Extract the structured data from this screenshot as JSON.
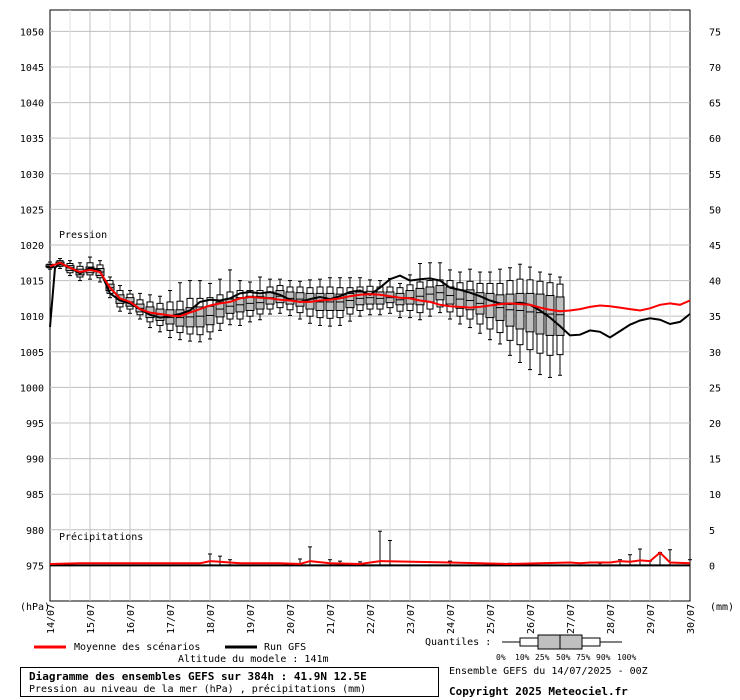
{
  "chart_data": {
    "type": "boxplot",
    "pressure_label": "Pression",
    "precip_label": "Précipitations",
    "left_unit": "(hPa)",
    "right_unit": "(mm)",
    "y_left_ticks": [
      975,
      980,
      985,
      990,
      995,
      1000,
      1005,
      1010,
      1015,
      1020,
      1025,
      1030,
      1035,
      1040,
      1045,
      1050
    ],
    "y_right_ticks": [
      0,
      5,
      10,
      15,
      20,
      25,
      30,
      35,
      40,
      45,
      50,
      55,
      60,
      65,
      70,
      75
    ],
    "ylim": [
      970,
      1053
    ],
    "x_labels": [
      "14/07",
      "15/07",
      "16/07",
      "17/07",
      "18/07",
      "19/07",
      "20/07",
      "21/07",
      "22/07",
      "23/07",
      "24/07",
      "25/07",
      "26/07",
      "27/07",
      "28/07",
      "29/07",
      "30/07"
    ],
    "x_hours": [
      0,
      384
    ],
    "ensemble_mean": [
      [
        0,
        1017
      ],
      [
        6,
        1017.5
      ],
      [
        12,
        1016.8
      ],
      [
        18,
        1016.2
      ],
      [
        24,
        1016.5
      ],
      [
        30,
        1016.2
      ],
      [
        36,
        1014
      ],
      [
        42,
        1012.5
      ],
      [
        48,
        1012
      ],
      [
        54,
        1011
      ],
      [
        60,
        1010.5
      ],
      [
        66,
        1010.3
      ],
      [
        72,
        1010.1
      ],
      [
        78,
        1010
      ],
      [
        84,
        1010.5
      ],
      [
        90,
        1011
      ],
      [
        96,
        1011.5
      ],
      [
        102,
        1011.8
      ],
      [
        108,
        1012
      ],
      [
        114,
        1012.5
      ],
      [
        120,
        1012.7
      ],
      [
        126,
        1012.6
      ],
      [
        132,
        1012.5
      ],
      [
        138,
        1012.3
      ],
      [
        144,
        1012.2
      ],
      [
        150,
        1012
      ],
      [
        156,
        1012
      ],
      [
        162,
        1012.2
      ],
      [
        168,
        1012.3
      ],
      [
        174,
        1012.5
      ],
      [
        180,
        1012.8
      ],
      [
        186,
        1013
      ],
      [
        192,
        1013.1
      ],
      [
        198,
        1013
      ],
      [
        204,
        1012.8
      ],
      [
        210,
        1012.6
      ],
      [
        216,
        1012.5
      ],
      [
        222,
        1012.2
      ],
      [
        228,
        1012
      ],
      [
        234,
        1011.6
      ],
      [
        240,
        1011.4
      ],
      [
        246,
        1011.3
      ],
      [
        252,
        1011.2
      ],
      [
        258,
        1011.3
      ],
      [
        264,
        1011.5
      ],
      [
        270,
        1011.7
      ],
      [
        276,
        1011.8
      ],
      [
        282,
        1011.7
      ],
      [
        288,
        1011.6
      ],
      [
        294,
        1011.2
      ],
      [
        300,
        1010.9
      ],
      [
        306,
        1010.7
      ],
      [
        312,
        1010.8
      ],
      [
        318,
        1011
      ],
      [
        324,
        1011.3
      ],
      [
        330,
        1011.5
      ],
      [
        336,
        1011.4
      ],
      [
        342,
        1011.2
      ],
      [
        348,
        1011
      ],
      [
        354,
        1010.8
      ],
      [
        360,
        1011.1
      ],
      [
        366,
        1011.6
      ],
      [
        372,
        1011.8
      ],
      [
        378,
        1011.6
      ],
      [
        384,
        1012.2
      ]
    ],
    "run_gfs": [
      [
        0,
        1008.5
      ],
      [
        3,
        1016.8
      ],
      [
        6,
        1017.4
      ],
      [
        12,
        1016.8
      ],
      [
        18,
        1016
      ],
      [
        24,
        1016.8
      ],
      [
        30,
        1016.4
      ],
      [
        36,
        1013.2
      ],
      [
        42,
        1012.2
      ],
      [
        48,
        1011.8
      ],
      [
        54,
        1011
      ],
      [
        60,
        1010.2
      ],
      [
        66,
        1009.8
      ],
      [
        72,
        1010
      ],
      [
        78,
        1010.3
      ],
      [
        84,
        1010.8
      ],
      [
        90,
        1012
      ],
      [
        96,
        1012.3
      ],
      [
        102,
        1012.2
      ],
      [
        108,
        1012.5
      ],
      [
        114,
        1013.2
      ],
      [
        120,
        1013.4
      ],
      [
        126,
        1013.2
      ],
      [
        132,
        1013.4
      ],
      [
        138,
        1013
      ],
      [
        144,
        1012.3
      ],
      [
        150,
        1012
      ],
      [
        156,
        1012.4
      ],
      [
        162,
        1012.7
      ],
      [
        168,
        1012.4
      ],
      [
        174,
        1012.8
      ],
      [
        180,
        1013.4
      ],
      [
        186,
        1013.6
      ],
      [
        192,
        1013
      ],
      [
        198,
        1014
      ],
      [
        204,
        1015.2
      ],
      [
        210,
        1015.7
      ],
      [
        216,
        1015
      ],
      [
        222,
        1015.2
      ],
      [
        228,
        1015.3
      ],
      [
        234,
        1015
      ],
      [
        240,
        1014
      ],
      [
        246,
        1013.7
      ],
      [
        252,
        1013.3
      ],
      [
        258,
        1012.8
      ],
      [
        264,
        1012.2
      ],
      [
        270,
        1011.8
      ],
      [
        276,
        1011.7
      ],
      [
        282,
        1011.9
      ],
      [
        288,
        1011.6
      ],
      [
        294,
        1010.8
      ],
      [
        300,
        1009.8
      ],
      [
        306,
        1008.6
      ],
      [
        312,
        1007.3
      ],
      [
        318,
        1007.4
      ],
      [
        324,
        1008
      ],
      [
        330,
        1007.8
      ],
      [
        336,
        1007
      ],
      [
        342,
        1007.9
      ],
      [
        348,
        1008.8
      ],
      [
        354,
        1009.4
      ],
      [
        360,
        1009.7
      ],
      [
        366,
        1009.5
      ],
      [
        372,
        1008.9
      ],
      [
        378,
        1009.2
      ],
      [
        384,
        1010.3
      ]
    ],
    "boxes": [
      {
        "h": 0,
        "min": 1016.6,
        "q10": 1016.8,
        "q25": 1016.9,
        "med": 1017,
        "q75": 1017.2,
        "q90": 1017.3,
        "max": 1017.6
      },
      {
        "h": 6,
        "min": 1016.7,
        "q10": 1017,
        "q25": 1017.2,
        "med": 1017.4,
        "q75": 1017.6,
        "q90": 1017.8,
        "max": 1018.1
      },
      {
        "h": 12,
        "min": 1015.7,
        "q10": 1016.1,
        "q25": 1016.4,
        "med": 1016.8,
        "q75": 1017.1,
        "q90": 1017.4,
        "max": 1017.8
      },
      {
        "h": 18,
        "min": 1015,
        "q10": 1015.5,
        "q25": 1015.8,
        "med": 1016.2,
        "q75": 1016.6,
        "q90": 1017,
        "max": 1017.5
      },
      {
        "h": 24,
        "min": 1015.2,
        "q10": 1015.8,
        "q25": 1016.1,
        "med": 1016.5,
        "q75": 1016.9,
        "q90": 1017.5,
        "max": 1018.3
      },
      {
        "h": 30,
        "min": 1014.8,
        "q10": 1015.4,
        "q25": 1015.7,
        "med": 1016.2,
        "q75": 1016.7,
        "q90": 1017.2,
        "max": 1017.8
      },
      {
        "h": 36,
        "min": 1012.6,
        "q10": 1013.2,
        "q25": 1013.6,
        "med": 1014,
        "q75": 1014.5,
        "q90": 1015,
        "max": 1015.5
      },
      {
        "h": 42,
        "min": 1010.7,
        "q10": 1011.3,
        "q25": 1011.8,
        "med": 1012.4,
        "q75": 1013,
        "q90": 1013.6,
        "max": 1014.3
      },
      {
        "h": 48,
        "min": 1010.4,
        "q10": 1011,
        "q25": 1011.4,
        "med": 1012,
        "q75": 1012.6,
        "q90": 1013.1,
        "max": 1013.6
      },
      {
        "h": 54,
        "min": 1009.6,
        "q10": 1010.2,
        "q25": 1010.6,
        "med": 1011.1,
        "q75": 1011.7,
        "q90": 1012.3,
        "max": 1013.2
      },
      {
        "h": 60,
        "min": 1008.4,
        "q10": 1009.2,
        "q25": 1009.8,
        "med": 1010.5,
        "q75": 1011.3,
        "q90": 1012,
        "max": 1013
      },
      {
        "h": 66,
        "min": 1007.8,
        "q10": 1008.7,
        "q25": 1009.4,
        "med": 1010.2,
        "q75": 1011,
        "q90": 1011.8,
        "max": 1012.8
      },
      {
        "h": 72,
        "min": 1007,
        "q10": 1008,
        "q25": 1008.9,
        "med": 1009.8,
        "q75": 1010.9,
        "q90": 1012,
        "max": 1013.6
      },
      {
        "h": 78,
        "min": 1006.7,
        "q10": 1007.7,
        "q25": 1008.6,
        "med": 1009.8,
        "q75": 1010.9,
        "q90": 1012.1,
        "max": 1014.7
      },
      {
        "h": 84,
        "min": 1006.5,
        "q10": 1007.5,
        "q25": 1008.5,
        "med": 1009.9,
        "q75": 1011.2,
        "q90": 1012.5,
        "max": 1015
      },
      {
        "h": 90,
        "min": 1006.4,
        "q10": 1007.4,
        "q25": 1008.5,
        "med": 1010,
        "q75": 1011.3,
        "q90": 1012.5,
        "max": 1015
      },
      {
        "h": 96,
        "min": 1006.8,
        "q10": 1007.8,
        "q25": 1008.8,
        "med": 1010.1,
        "q75": 1011.4,
        "q90": 1012.6,
        "max": 1014.6
      },
      {
        "h": 102,
        "min": 1008,
        "q10": 1009,
        "q25": 1009.9,
        "med": 1011,
        "q75": 1012,
        "q90": 1013,
        "max": 1015.2
      },
      {
        "h": 108,
        "min": 1008.8,
        "q10": 1009.6,
        "q25": 1010.4,
        "med": 1011.4,
        "q75": 1012.4,
        "q90": 1013.4,
        "max": 1016.5
      },
      {
        "h": 114,
        "min": 1008.7,
        "q10": 1009.6,
        "q25": 1010.6,
        "med": 1011.6,
        "q75": 1012.6,
        "q90": 1013.6,
        "max": 1015
      },
      {
        "h": 120,
        "min": 1009.2,
        "q10": 1010,
        "q25": 1010.8,
        "med": 1011.8,
        "q75": 1012.8,
        "q90": 1013.6,
        "max": 1014.8
      },
      {
        "h": 126,
        "min": 1009.5,
        "q10": 1010.3,
        "q25": 1011,
        "med": 1011.9,
        "q75": 1012.8,
        "q90": 1013.6,
        "max": 1015.5
      },
      {
        "h": 132,
        "min": 1010.3,
        "q10": 1011,
        "q25": 1011.7,
        "med": 1012.6,
        "q75": 1013.4,
        "q90": 1014.1,
        "max": 1015.2
      },
      {
        "h": 138,
        "min": 1010.4,
        "q10": 1011.2,
        "q25": 1011.9,
        "med": 1012.8,
        "q75": 1013.6,
        "q90": 1014.3,
        "max": 1015.2
      },
      {
        "h": 144,
        "min": 1010.1,
        "q10": 1010.9,
        "q25": 1011.7,
        "med": 1012.5,
        "q75": 1013.4,
        "q90": 1014.1,
        "max": 1015
      },
      {
        "h": 150,
        "min": 1009.6,
        "q10": 1010.5,
        "q25": 1011.4,
        "med": 1012.4,
        "q75": 1013.3,
        "q90": 1014.1,
        "max": 1014.9
      },
      {
        "h": 156,
        "min": 1009,
        "q10": 1010,
        "q25": 1011,
        "med": 1012.1,
        "q75": 1013.2,
        "q90": 1014,
        "max": 1015.1
      },
      {
        "h": 162,
        "min": 1008.7,
        "q10": 1009.8,
        "q25": 1010.8,
        "med": 1012,
        "q75": 1013.2,
        "q90": 1014.1,
        "max": 1015.2
      },
      {
        "h": 168,
        "min": 1008.6,
        "q10": 1009.7,
        "q25": 1010.8,
        "med": 1012,
        "q75": 1013.2,
        "q90": 1014.1,
        "max": 1015.4
      },
      {
        "h": 174,
        "min": 1008.7,
        "q10": 1009.8,
        "q25": 1010.8,
        "med": 1012,
        "q75": 1013.1,
        "q90": 1014,
        "max": 1015.4
      },
      {
        "h": 180,
        "min": 1009.3,
        "q10": 1010.3,
        "q25": 1011.2,
        "med": 1012.2,
        "q75": 1013.2,
        "q90": 1014,
        "max": 1015.4
      },
      {
        "h": 186,
        "min": 1010,
        "q10": 1010.8,
        "q25": 1011.6,
        "med": 1012.5,
        "q75": 1013.4,
        "q90": 1014.1,
        "max": 1015.4
      },
      {
        "h": 192,
        "min": 1010.2,
        "q10": 1011,
        "q25": 1011.7,
        "med": 1012.6,
        "q75": 1013.5,
        "q90": 1014.2,
        "max": 1015.1
      },
      {
        "h": 198,
        "min": 1010.2,
        "q10": 1011,
        "q25": 1011.7,
        "med": 1012.5,
        "q75": 1013.4,
        "q90": 1014.1,
        "max": 1015
      },
      {
        "h": 204,
        "min": 1010.4,
        "q10": 1011.2,
        "q25": 1011.9,
        "med": 1012.6,
        "q75": 1013.4,
        "q90": 1014.1,
        "max": 1015.3
      },
      {
        "h": 210,
        "min": 1009.8,
        "q10": 1010.7,
        "q25": 1011.6,
        "med": 1012.3,
        "q75": 1013.2,
        "q90": 1014,
        "max": 1014.6
      },
      {
        "h": 216,
        "min": 1009.8,
        "q10": 1010.8,
        "q25": 1011.7,
        "med": 1012.6,
        "q75": 1013.6,
        "q90": 1014.4,
        "max": 1015.8
      },
      {
        "h": 222,
        "min": 1009.5,
        "q10": 1010.5,
        "q25": 1011.6,
        "med": 1012.8,
        "q75": 1013.9,
        "q90": 1014.8,
        "max": 1017.4
      },
      {
        "h": 228,
        "min": 1010,
        "q10": 1011,
        "q25": 1012,
        "med": 1013.1,
        "q75": 1014.1,
        "q90": 1015,
        "max": 1017.5
      },
      {
        "h": 234,
        "min": 1010.5,
        "q10": 1011.3,
        "q25": 1012.3,
        "med": 1013.3,
        "q75": 1014.3,
        "q90": 1015.1,
        "max": 1017.5
      },
      {
        "h": 240,
        "min": 1009.6,
        "q10": 1010.6,
        "q25": 1011.7,
        "med": 1012.9,
        "q75": 1014.1,
        "q90": 1015,
        "max": 1016.5
      },
      {
        "h": 246,
        "min": 1008.9,
        "q10": 1010,
        "q25": 1011.1,
        "med": 1012.4,
        "q75": 1013.7,
        "q90": 1014.7,
        "max": 1016.2
      },
      {
        "h": 252,
        "min": 1008.4,
        "q10": 1009.6,
        "q25": 1010.9,
        "med": 1012.2,
        "q75": 1013.7,
        "q90": 1014.9,
        "max": 1016.6
      },
      {
        "h": 258,
        "min": 1007.6,
        "q10": 1008.9,
        "q25": 1010.3,
        "med": 1011.8,
        "q75": 1013.3,
        "q90": 1014.6,
        "max": 1016.2
      },
      {
        "h": 264,
        "min": 1006.7,
        "q10": 1008.2,
        "q25": 1009.8,
        "med": 1011.5,
        "q75": 1013.2,
        "q90": 1014.6,
        "max": 1016.2
      },
      {
        "h": 270,
        "min": 1006.1,
        "q10": 1007.7,
        "q25": 1009.4,
        "med": 1011.2,
        "q75": 1013,
        "q90": 1014.6,
        "max": 1016.6
      },
      {
        "h": 276,
        "min": 1004.5,
        "q10": 1006.6,
        "q25": 1008.6,
        "med": 1010.9,
        "q75": 1013.1,
        "q90": 1015,
        "max": 1016.8
      },
      {
        "h": 282,
        "min": 1003.5,
        "q10": 1006,
        "q25": 1008.2,
        "med": 1010.8,
        "q75": 1013.2,
        "q90": 1015.2,
        "max": 1017.3
      },
      {
        "h": 288,
        "min": 1002.5,
        "q10": 1005.3,
        "q25": 1007.8,
        "med": 1010.6,
        "q75": 1013.2,
        "q90": 1015.1,
        "max": 1016.9
      },
      {
        "h": 294,
        "min": 1001.8,
        "q10": 1004.8,
        "q25": 1007.5,
        "med": 1010.5,
        "q75": 1013.1,
        "q90": 1014.9,
        "max": 1016.2
      },
      {
        "h": 300,
        "min": 1001.4,
        "q10": 1004.5,
        "q25": 1007.3,
        "med": 1010.3,
        "q75": 1012.9,
        "q90": 1014.7,
        "max": 1015.9
      },
      {
        "h": 306,
        "min": 1001.7,
        "q10": 1004.6,
        "q25": 1007.3,
        "med": 1010.2,
        "q75": 1012.7,
        "q90": 1014.5,
        "max": 1015.5
      }
    ],
    "precip_label_0": "0",
    "precip_series": [
      [
        0,
        0.2
      ],
      [
        18,
        0.3
      ],
      [
        90,
        0.3
      ],
      [
        96,
        0.6
      ],
      [
        102,
        0.5
      ],
      [
        108,
        0.4
      ],
      [
        114,
        0.3
      ],
      [
        138,
        0.3
      ],
      [
        150,
        0.2
      ],
      [
        156,
        0.6
      ],
      [
        168,
        0.3
      ],
      [
        186,
        0.2
      ],
      [
        198,
        0.6
      ],
      [
        240,
        0.4
      ],
      [
        258,
        0.3
      ],
      [
        276,
        0.2
      ],
      [
        312,
        0.4
      ],
      [
        318,
        0.3
      ],
      [
        324,
        0.4
      ],
      [
        336,
        0.4
      ],
      [
        342,
        0.6
      ],
      [
        348,
        0.5
      ],
      [
        354,
        0.7
      ],
      [
        360,
        0.6
      ],
      [
        366,
        1.8
      ],
      [
        372,
        0.4
      ],
      [
        384,
        0.3
      ]
    ],
    "precip_spikes": [
      [
        96,
        1.6
      ],
      [
        102,
        1.3
      ],
      [
        108,
        0.8
      ],
      [
        150,
        0.9
      ],
      [
        156,
        2.6
      ],
      [
        168,
        0.8
      ],
      [
        174,
        0.6
      ],
      [
        186,
        0.5
      ],
      [
        198,
        4.8
      ],
      [
        204,
        3.5
      ],
      [
        240,
        0.6
      ],
      [
        276,
        0.3
      ],
      [
        330,
        0.3
      ],
      [
        342,
        0.8
      ],
      [
        348,
        1.5
      ],
      [
        354,
        2.3
      ],
      [
        360,
        0.6
      ],
      [
        366,
        1.8
      ],
      [
        372,
        2.2
      ],
      [
        384,
        0.8
      ]
    ]
  },
  "legend": {
    "mean_label": "Moyenne des scénarios",
    "run_label": "Run GFS",
    "quantiles_label": "Quantiles :",
    "quantile_ticks": [
      "0%",
      "10%",
      "25%",
      "50%",
      "75%",
      "90%",
      "100%"
    ]
  },
  "footer": {
    "altitude": "Altitude du modele : 141m",
    "title": "Diagramme des ensembles GEFS sur 384h : 41.9N 12.5E",
    "subtitle": "Pression au niveau de la mer (hPa) , précipitations (mm)",
    "ensemble": "Ensemble GEFS du 14/07/2025 - 00Z",
    "copyright": "Copyright 2025 Meteociel.fr"
  },
  "colors": {
    "mean": "#ff0000",
    "run": "#000000",
    "box": "#c0c0c0",
    "grid": "#c0c0c0"
  }
}
